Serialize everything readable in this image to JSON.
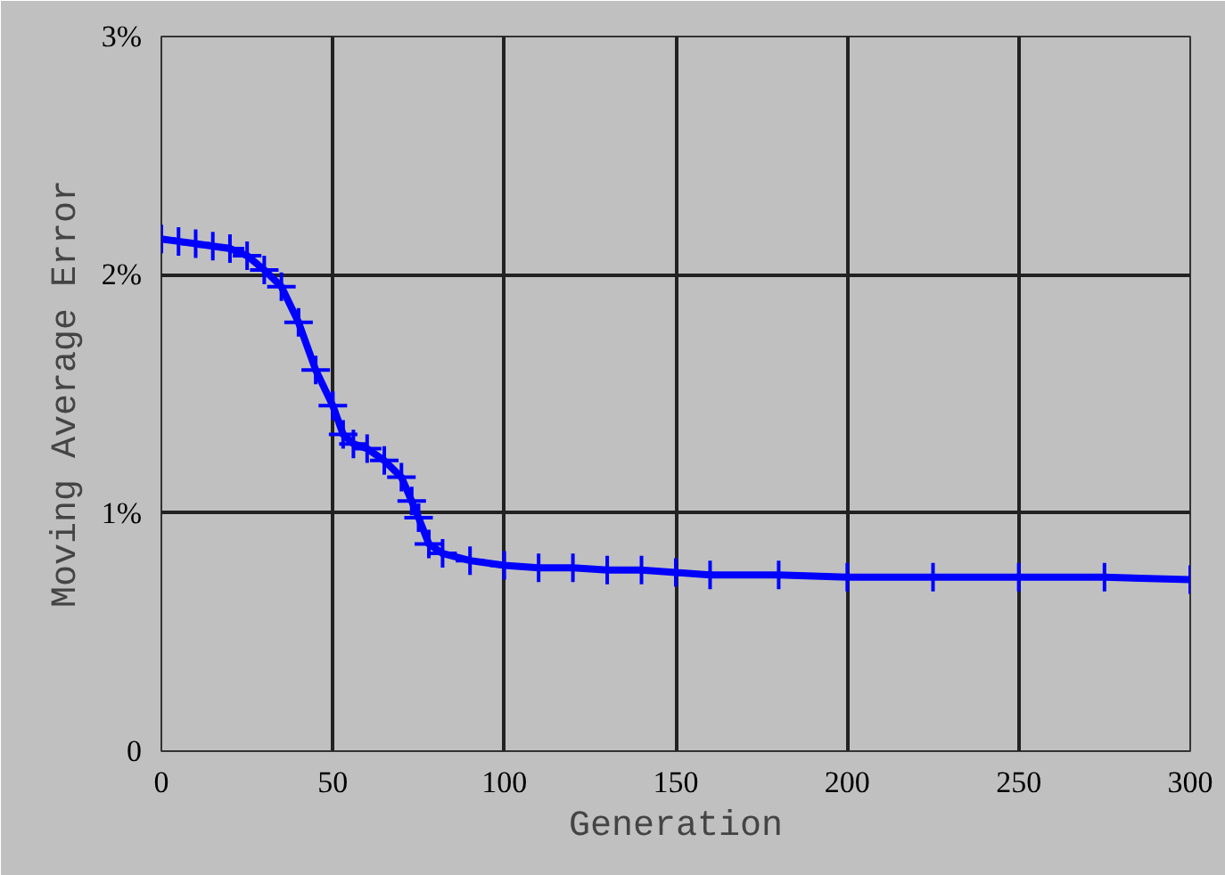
{
  "chart_data": {
    "type": "line",
    "xlabel": "Generation",
    "ylabel": "Moving Average Error",
    "x": [
      0,
      5,
      10,
      15,
      20,
      25,
      30,
      35,
      40,
      45,
      50,
      53,
      56,
      60,
      65,
      70,
      73,
      75,
      78,
      82,
      90,
      100,
      110,
      120,
      130,
      140,
      150,
      160,
      180,
      200,
      225,
      250,
      275,
      300
    ],
    "series": [
      {
        "color": "#0000ff",
        "values": [
          2.15,
          2.14,
          2.13,
          2.12,
          2.11,
          2.08,
          2.02,
          1.95,
          1.8,
          1.6,
          1.45,
          1.33,
          1.29,
          1.27,
          1.22,
          1.15,
          1.05,
          0.98,
          0.87,
          0.83,
          0.8,
          0.78,
          0.77,
          0.77,
          0.76,
          0.76,
          0.75,
          0.74,
          0.74,
          0.73,
          0.73,
          0.73,
          0.73,
          0.72
        ]
      }
    ],
    "xlim": [
      0,
      300
    ],
    "xticks": [
      0,
      50,
      100,
      150,
      200,
      250,
      300
    ],
    "ylim": [
      0,
      3
    ],
    "yticks": [
      {
        "value": 0,
        "label": "0"
      },
      {
        "value": 1,
        "label": "1%"
      },
      {
        "value": 2,
        "label": "2%"
      },
      {
        "value": 3,
        "label": "3%"
      }
    ],
    "grid": true,
    "marker": "cross",
    "line_style": "solid"
  }
}
